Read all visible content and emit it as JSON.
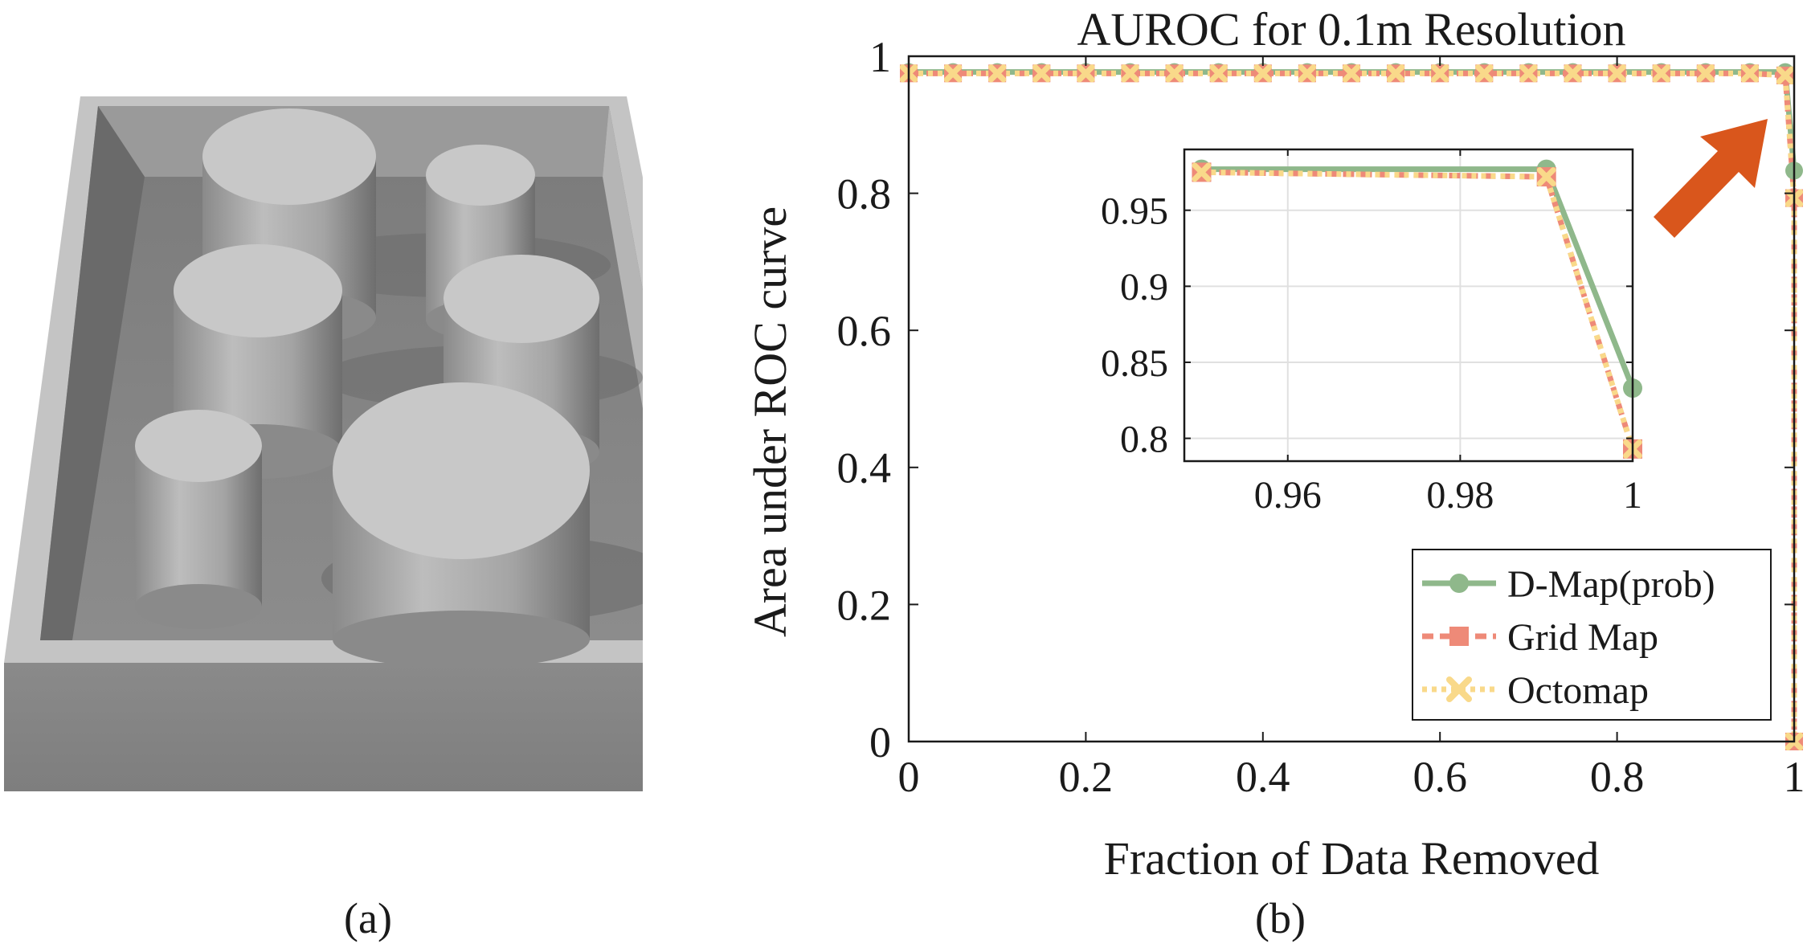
{
  "panels": {
    "a_label": "(a)",
    "b_label": "(b)"
  },
  "colors": {
    "dmap": "#8fb88b",
    "grid": "#ee8a78",
    "octo": "#f9d98a",
    "arrow": "#d9561c",
    "axis": "#1a1a1a",
    "grid_lines": "#e0e0e0"
  },
  "chart_data": [
    {
      "type": "line",
      "title": "AUROC for 0.1m Resolution",
      "xlabel": "Fraction of Data Removed",
      "ylabel": "Area under ROC curve",
      "xlim": [
        0,
        1
      ],
      "ylim": [
        0,
        1
      ],
      "xticks": [
        "0",
        "0.2",
        "0.4",
        "0.6",
        "0.8",
        "1"
      ],
      "yticks": [
        "0",
        "0.2",
        "0.4",
        "0.6",
        "0.8",
        "1"
      ],
      "grid": false,
      "legend": "bottom-right",
      "series": [
        {
          "name": "D-Map(prob)",
          "marker": "circle",
          "x": [
            0,
            0.05,
            0.1,
            0.15,
            0.2,
            0.25,
            0.3,
            0.35,
            0.4,
            0.45,
            0.5,
            0.55,
            0.6,
            0.65,
            0.7,
            0.75,
            0.8,
            0.85,
            0.9,
            0.95,
            0.99,
            1.0
          ],
          "y": [
            0.977,
            0.977,
            0.977,
            0.977,
            0.977,
            0.977,
            0.977,
            0.977,
            0.977,
            0.977,
            0.977,
            0.977,
            0.977,
            0.977,
            0.977,
            0.977,
            0.977,
            0.977,
            0.977,
            0.977,
            0.977,
            0.833
          ]
        },
        {
          "name": "Grid Map",
          "marker": "square",
          "x": [
            0,
            0.05,
            0.1,
            0.15,
            0.2,
            0.25,
            0.3,
            0.35,
            0.4,
            0.45,
            0.5,
            0.55,
            0.6,
            0.65,
            0.7,
            0.75,
            0.8,
            0.85,
            0.9,
            0.95,
            0.99,
            1.0,
            1.0
          ],
          "y": [
            0.975,
            0.975,
            0.975,
            0.975,
            0.975,
            0.975,
            0.975,
            0.975,
            0.975,
            0.975,
            0.975,
            0.975,
            0.975,
            0.975,
            0.975,
            0.975,
            0.975,
            0.975,
            0.975,
            0.975,
            0.972,
            0.793,
            0.0
          ]
        },
        {
          "name": "Octomap",
          "marker": "x",
          "x": [
            0,
            0.05,
            0.1,
            0.15,
            0.2,
            0.25,
            0.3,
            0.35,
            0.4,
            0.45,
            0.5,
            0.55,
            0.6,
            0.65,
            0.7,
            0.75,
            0.8,
            0.85,
            0.9,
            0.95,
            0.99,
            1.0,
            1.0
          ],
          "y": [
            0.975,
            0.975,
            0.975,
            0.975,
            0.975,
            0.975,
            0.975,
            0.975,
            0.975,
            0.975,
            0.975,
            0.975,
            0.975,
            0.975,
            0.975,
            0.975,
            0.975,
            0.975,
            0.975,
            0.975,
            0.972,
            0.793,
            0.0
          ]
        }
      ]
    },
    {
      "type": "line",
      "title": "",
      "xlim": [
        0.948,
        1.0
      ],
      "ylim": [
        0.785,
        0.99
      ],
      "xticks": [
        "0.96",
        "0.98",
        "1"
      ],
      "yticks": [
        "0.8",
        "0.85",
        "0.9",
        "0.95"
      ],
      "grid": true,
      "series": [
        {
          "name": "D-Map(prob)",
          "x": [
            0.95,
            0.99,
            1.0
          ],
          "y": [
            0.977,
            0.977,
            0.833
          ]
        },
        {
          "name": "Grid Map",
          "x": [
            0.95,
            0.99,
            1.0
          ],
          "y": [
            0.975,
            0.972,
            0.793
          ]
        },
        {
          "name": "Octomap",
          "x": [
            0.95,
            0.99,
            1.0
          ],
          "y": [
            0.975,
            0.972,
            0.793
          ]
        }
      ]
    }
  ]
}
